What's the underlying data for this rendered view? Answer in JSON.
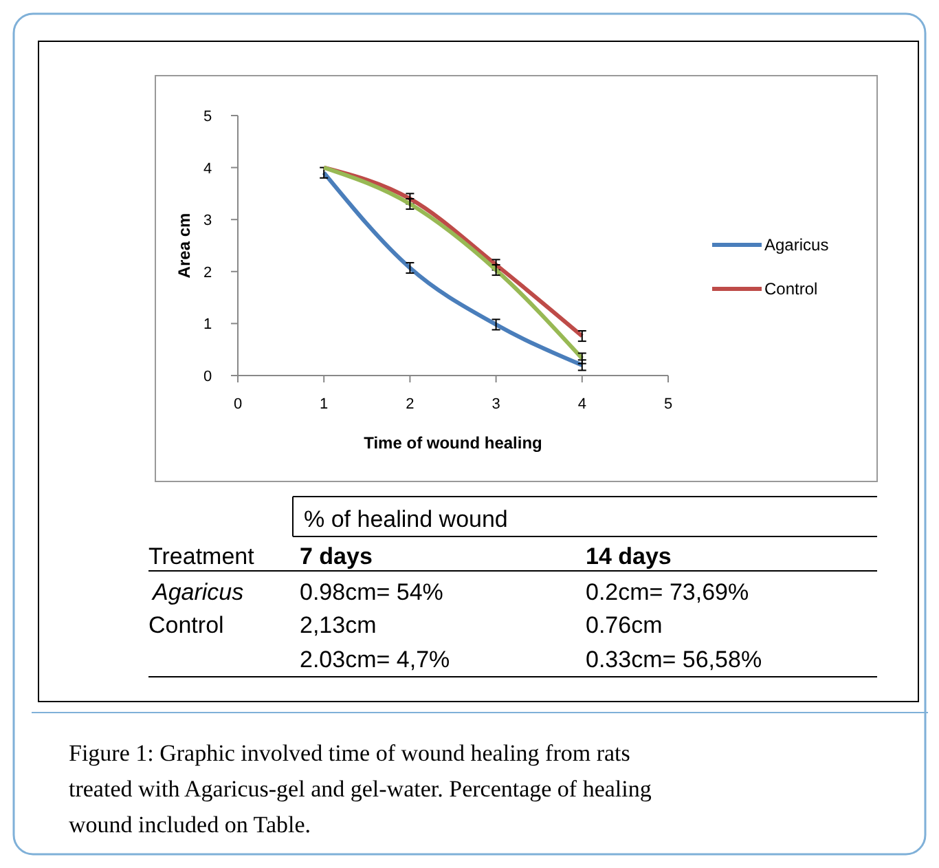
{
  "chart_data": {
    "type": "line",
    "xlabel": "Time of wound healing",
    "ylabel": "Area cm",
    "x": [
      1,
      2,
      3,
      4
    ],
    "series": [
      {
        "name": "Agaricus",
        "color": "#4a7ebb",
        "values": [
          3.9,
          2.07,
          0.98,
          0.2
        ],
        "errors": [
          0.1,
          0.1,
          0.1,
          0.1
        ]
      },
      {
        "name": "Control",
        "color": "#be4b48",
        "values": [
          4.0,
          3.4,
          2.13,
          0.76
        ],
        "errors": [
          null,
          0.1,
          0.1,
          0.1
        ]
      },
      {
        "color": "#98b954",
        "values": [
          4.0,
          3.3,
          2.03,
          0.33
        ],
        "errors": [
          null,
          0.1,
          0.1,
          0.1
        ]
      }
    ],
    "xlim": [
      0,
      5
    ],
    "xticks": [
      0,
      1,
      2,
      3,
      4,
      5
    ],
    "ylim": [
      0,
      5
    ],
    "yticks": [
      0,
      1,
      2,
      3,
      4,
      5
    ],
    "grid": false,
    "legend": "right",
    "marker": "none",
    "line_style": "solid",
    "annotations": [
      "% of healind wound",
      "Treatment",
      "7 days",
      "14 days",
      "Agaricus",
      "0.98cm= 54%",
      "0.2cm= 73,69%",
      "Control",
      "2,13cm",
      "0.76cm",
      "2.03cm= 4,7%",
      "0.33cm= 56,58%",
      "Figure 1: Graphic involved time of wound healing from rats treated with Agaricus-gel and gel-water. Percentage of healing wound included on Table."
    ]
  }
}
